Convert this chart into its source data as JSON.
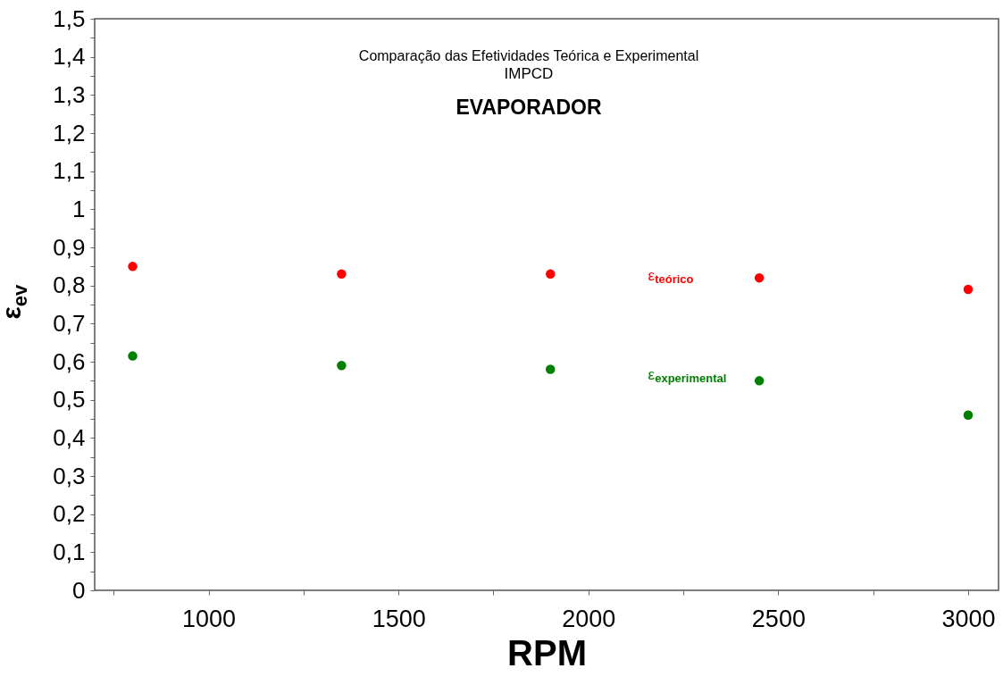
{
  "chart_data": {
    "type": "scatter",
    "title": "Comparação das Efetividades Teórica e Experimental",
    "subtitle": "IMPCD",
    "annotations": [
      "EVAPORADOR"
    ],
    "xlabel": "RPM",
    "ylabel": "ε$_{ev}$",
    "x": [
      800,
      1350,
      1900,
      2450,
      3000
    ],
    "series": [
      {
        "name": "ε$_{teórico}$",
        "color": "#ff0000",
        "values": [
          0.85,
          0.83,
          0.83,
          0.82,
          0.79
        ]
      },
      {
        "name": "ε$_{experimental}$",
        "color": "#008000",
        "values": [
          0.615,
          0.59,
          0.58,
          0.55,
          0.46
        ]
      }
    ],
    "marker": "circle",
    "grid": false,
    "legend": false,
    "xlim": [
      700,
      3080
    ],
    "xticks": [
      {
        "value": 750,
        "label": null
      },
      1000,
      {
        "value": 1250,
        "label": null
      },
      1500,
      {
        "value": 1750,
        "label": null
      },
      2000,
      {
        "value": 2250,
        "label": null
      },
      2500,
      {
        "value": 2750,
        "label": null
      },
      3000
    ],
    "ylim": [
      0,
      1.5
    ],
    "yticks": [
      {
        "value": 0,
        "label": "0"
      },
      {
        "value": 0.05,
        "label": null
      },
      {
        "value": 0.1,
        "label": "0,1"
      },
      {
        "value": 0.15,
        "label": null
      },
      {
        "value": 0.2,
        "label": "0,2"
      },
      {
        "value": 0.25,
        "label": null
      },
      {
        "value": 0.3,
        "label": "0,3"
      },
      {
        "value": 0.35,
        "label": null
      },
      {
        "value": 0.4,
        "label": "0,4"
      },
      {
        "value": 0.45,
        "label": null
      },
      {
        "value": 0.5,
        "label": "0,5"
      },
      {
        "value": 0.55,
        "label": null
      },
      {
        "value": 0.6,
        "label": "0,6"
      },
      {
        "value": 0.65,
        "label": null
      },
      {
        "value": 0.7,
        "label": "0,7"
      },
      {
        "value": 0.75,
        "label": null
      },
      {
        "value": 0.8,
        "label": "0,8"
      },
      {
        "value": 0.85,
        "label": null
      },
      {
        "value": 0.9,
        "label": "0,9"
      },
      {
        "value": 0.95,
        "label": null
      },
      {
        "value": 1,
        "label": "1"
      },
      {
        "value": 1.05,
        "label": null
      },
      {
        "value": 1.1,
        "label": "1,1"
      },
      {
        "value": 1.15,
        "label": null
      },
      {
        "value": 1.2,
        "label": "1,2"
      },
      {
        "value": 1.25,
        "label": null
      },
      {
        "value": 1.3,
        "label": "1,3"
      },
      {
        "value": 1.35,
        "label": null
      },
      {
        "value": 1.4,
        "label": "1,4"
      },
      {
        "value": 1.45,
        "label": null
      },
      {
        "value": 1.5,
        "label": "1,5"
      }
    ]
  }
}
